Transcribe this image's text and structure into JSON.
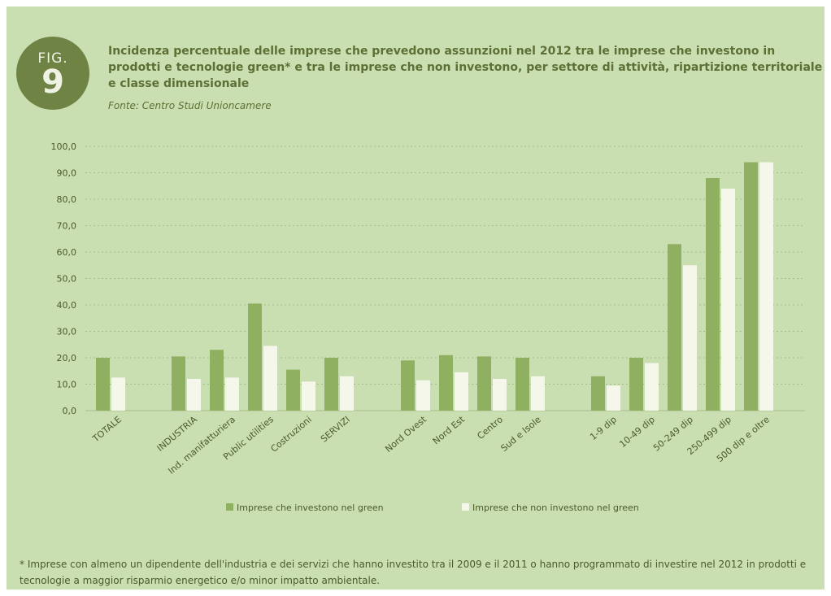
{
  "figure": {
    "badge_label": "FIG.",
    "badge_number": "9",
    "title": "Incidenza percentuale delle imprese che prevedono assunzioni nel 2012 tra le imprese che investono in prodotti e tecnologie green* e tra le imprese che non investono, per settore di attività, ripartizione territoriale e classe dimensionale",
    "source": "Fonte: Centro Studi Unioncamere",
    "footnote": "* Imprese con almeno un dipendente dell'industria e dei servizi che hanno investito tra il 2009 e il 2011 o hanno programmato di investire nel 2012 in prodotti e tecnologie a maggior risparmio energetico e/o minor impatto ambientale."
  },
  "colors": {
    "background": "#c9dfb1",
    "green_series": "#8fb060",
    "nongreen_series": "#f4f7ea",
    "badge": "#6f8344",
    "title": "#5d6f34",
    "grid": "#a8bd8c"
  },
  "chart_data": {
    "type": "bar",
    "title": "",
    "xlabel": "",
    "ylabel": "",
    "ylim": [
      0,
      100
    ],
    "yticks": [
      "0,0",
      "10,0",
      "20,0",
      "30,0",
      "40,0",
      "50,0",
      "60,0",
      "70,0",
      "80,0",
      "90,0",
      "100,0"
    ],
    "grid": true,
    "legend_position": "bottom",
    "groups": [
      [
        "TOTALE"
      ],
      [
        "INDUSTRIA",
        "Ind. manifatturiera",
        "Public utilities",
        "Costruzioni",
        "SERVIZI"
      ],
      [
        "Nord Ovest",
        "Nord Est",
        "Centro",
        "Sud e Isole"
      ],
      [
        "1-9 dip",
        "10-49 dip",
        "50-249 dip",
        "250-499 dip",
        "500 dip e oltre"
      ]
    ],
    "categories": [
      "TOTALE",
      "INDUSTRIA",
      "Ind. manifatturiera",
      "Public utilities",
      "Costruzioni",
      "SERVIZI",
      "Nord Ovest",
      "Nord Est",
      "Centro",
      "Sud e Isole",
      "1-9 dip",
      "10-49 dip",
      "50-249 dip",
      "250-499 dip",
      "500 dip e oltre"
    ],
    "series": [
      {
        "name": "Imprese che investono nel green",
        "values": [
          20.0,
          20.5,
          23.0,
          40.5,
          15.5,
          20.0,
          19.0,
          21.0,
          20.5,
          20.0,
          13.0,
          20.0,
          63.0,
          88.0,
          94.0
        ]
      },
      {
        "name": "Imprese che non investono nel green",
        "values": [
          12.5,
          12.0,
          12.5,
          24.5,
          11.0,
          13.0,
          11.5,
          14.5,
          12.0,
          13.0,
          9.5,
          18.0,
          55.0,
          84.0,
          94.0
        ]
      }
    ]
  }
}
